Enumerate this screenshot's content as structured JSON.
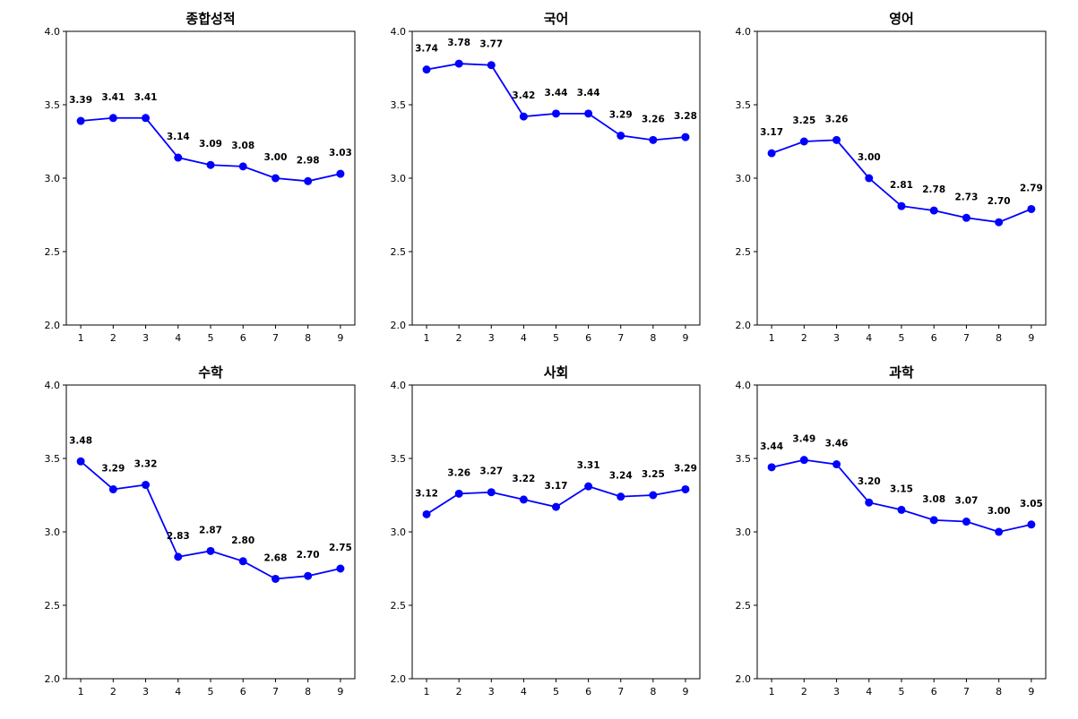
{
  "chart_data": [
    {
      "type": "line",
      "title": "종합성적",
      "x": [
        1,
        2,
        3,
        4,
        5,
        6,
        7,
        8,
        9
      ],
      "values": [
        3.39,
        3.41,
        3.41,
        3.14,
        3.09,
        3.08,
        3.0,
        2.98,
        3.03
      ],
      "labels": [
        "3.39",
        "3.41",
        "3.41",
        "3.14",
        "3.09",
        "3.08",
        "3.00",
        "2.98",
        "3.03"
      ],
      "ylim": [
        2.0,
        4.0
      ],
      "yticks": [
        "2.0",
        "2.5",
        "3.0",
        "3.5",
        "4.0"
      ],
      "xticks": [
        "1",
        "2",
        "3",
        "4",
        "5",
        "6",
        "7",
        "8",
        "9"
      ],
      "color": "#0000ff",
      "grid": false
    },
    {
      "type": "line",
      "title": "국어",
      "x": [
        1,
        2,
        3,
        4,
        5,
        6,
        7,
        8,
        9
      ],
      "values": [
        3.74,
        3.78,
        3.77,
        3.42,
        3.44,
        3.44,
        3.29,
        3.26,
        3.28
      ],
      "labels": [
        "3.74",
        "3.78",
        "3.77",
        "3.42",
        "3.44",
        "3.44",
        "3.29",
        "3.26",
        "3.28"
      ],
      "ylim": [
        2.0,
        4.0
      ],
      "yticks": [
        "2.0",
        "2.5",
        "3.0",
        "3.5",
        "4.0"
      ],
      "xticks": [
        "1",
        "2",
        "3",
        "4",
        "5",
        "6",
        "7",
        "8",
        "9"
      ],
      "color": "#0000ff",
      "grid": false
    },
    {
      "type": "line",
      "title": "영어",
      "x": [
        1,
        2,
        3,
        4,
        5,
        6,
        7,
        8,
        9
      ],
      "values": [
        3.17,
        3.25,
        3.26,
        3.0,
        2.81,
        2.78,
        2.73,
        2.7,
        2.79
      ],
      "labels": [
        "3.17",
        "3.25",
        "3.26",
        "3.00",
        "2.81",
        "2.78",
        "2.73",
        "2.70",
        "2.79"
      ],
      "ylim": [
        2.0,
        4.0
      ],
      "yticks": [
        "2.0",
        "2.5",
        "3.0",
        "3.5",
        "4.0"
      ],
      "xticks": [
        "1",
        "2",
        "3",
        "4",
        "5",
        "6",
        "7",
        "8",
        "9"
      ],
      "color": "#0000ff",
      "grid": false
    },
    {
      "type": "line",
      "title": "수학",
      "x": [
        1,
        2,
        3,
        4,
        5,
        6,
        7,
        8,
        9
      ],
      "values": [
        3.48,
        3.29,
        3.32,
        2.83,
        2.87,
        2.8,
        2.68,
        2.7,
        2.75
      ],
      "labels": [
        "3.48",
        "3.29",
        "3.32",
        "2.83",
        "2.87",
        "2.80",
        "2.68",
        "2.70",
        "2.75"
      ],
      "ylim": [
        2.0,
        4.0
      ],
      "yticks": [
        "2.0",
        "2.5",
        "3.0",
        "3.5",
        "4.0"
      ],
      "xticks": [
        "1",
        "2",
        "3",
        "4",
        "5",
        "6",
        "7",
        "8",
        "9"
      ],
      "color": "#0000ff",
      "grid": false
    },
    {
      "type": "line",
      "title": "사회",
      "x": [
        1,
        2,
        3,
        4,
        5,
        6,
        7,
        8,
        9
      ],
      "values": [
        3.12,
        3.26,
        3.27,
        3.22,
        3.17,
        3.31,
        3.24,
        3.25,
        3.29
      ],
      "labels": [
        "3.12",
        "3.26",
        "3.27",
        "3.22",
        "3.17",
        "3.31",
        "3.24",
        "3.25",
        "3.29"
      ],
      "ylim": [
        2.0,
        4.0
      ],
      "yticks": [
        "2.0",
        "2.5",
        "3.0",
        "3.5",
        "4.0"
      ],
      "xticks": [
        "1",
        "2",
        "3",
        "4",
        "5",
        "6",
        "7",
        "8",
        "9"
      ],
      "color": "#0000ff",
      "grid": false
    },
    {
      "type": "line",
      "title": "과학",
      "x": [
        1,
        2,
        3,
        4,
        5,
        6,
        7,
        8,
        9
      ],
      "values": [
        3.44,
        3.49,
        3.46,
        3.2,
        3.15,
        3.08,
        3.07,
        3.0,
        3.05
      ],
      "labels": [
        "3.44",
        "3.49",
        "3.46",
        "3.20",
        "3.15",
        "3.08",
        "3.07",
        "3.00",
        "3.05"
      ],
      "ylim": [
        2.0,
        4.0
      ],
      "yticks": [
        "2.0",
        "2.5",
        "3.0",
        "3.5",
        "4.0"
      ],
      "xticks": [
        "1",
        "2",
        "3",
        "4",
        "5",
        "6",
        "7",
        "8",
        "9"
      ],
      "color": "#0000ff",
      "grid": false
    }
  ]
}
